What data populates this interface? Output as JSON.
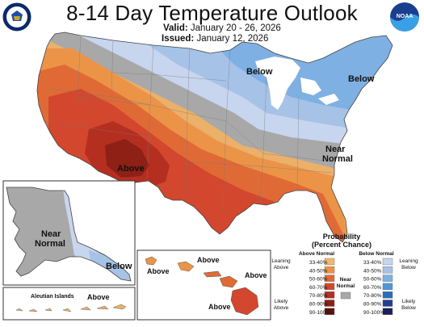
{
  "header": {
    "title": "8-14 Day Temperature Outlook",
    "valid_label": "Valid:",
    "valid_value": "January 20 - 26, 2026",
    "issued_label": "Issued:",
    "issued_value": "January 12, 2026",
    "left_logo": "doc-seal",
    "right_logo": "noaa-logo",
    "noaa_logo_text": "NOAA"
  },
  "map_labels": {
    "below_north": "Below",
    "below_northeast": "Below",
    "near_normal_east": "Near",
    "near_normal_east_2": "Normal",
    "above_southwest": "Above",
    "alaska_near": "Near",
    "alaska_normal": "Normal",
    "alaska_below": "Below",
    "aleutian_islands": "Aleutian Islands",
    "aleutian_above": "Above",
    "hawaii_above_1": "Above",
    "hawaii_above_2": "Above",
    "hawaii_above_3": "Above",
    "hawaii_above_4": "Above"
  },
  "legend": {
    "title_line1": "Probability",
    "title_line2": "(Percent Chance)",
    "above_header": "Above Normal",
    "below_header": "Below Normal",
    "near_header_1": "Near",
    "near_header_2": "Normal",
    "leaning_above_1": "Leaning",
    "leaning_above_2": "Above",
    "likely_above_1": "Likely",
    "likely_above_2": "Above",
    "leaning_below_1": "Leaning",
    "leaning_below_2": "Below",
    "likely_below_1": "Likely",
    "likely_below_2": "Below",
    "above_ranges": [
      "33-40%",
      "40-50%",
      "50-60%",
      "60-70%",
      "70-80%",
      "80-90%",
      "90-100%"
    ],
    "above_colors": [
      "#f2b96c",
      "#eb9447",
      "#e06a35",
      "#d2472d",
      "#b52f21",
      "#8e2016",
      "#5e120c"
    ],
    "below_ranges": [
      "33-40%",
      "40-50%",
      "50-60%",
      "60-70%",
      "70-80%",
      "80-90%",
      "90-100%"
    ],
    "below_colors": [
      "#c8d5ee",
      "#a6c2e7",
      "#7fb0e3",
      "#4f97d9",
      "#2a6dbb",
      "#1f3f8f",
      "#1a1f5c"
    ],
    "near_color": "#a8a8a8"
  }
}
